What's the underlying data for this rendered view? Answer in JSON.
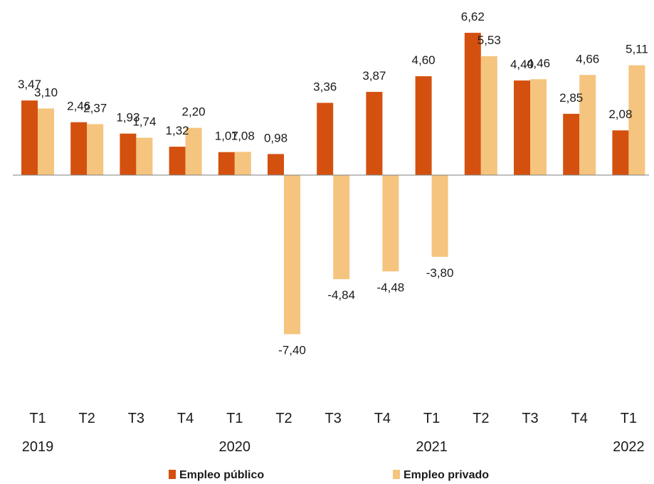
{
  "chart_data": {
    "type": "bar",
    "categories": [
      "T1",
      "T2",
      "T3",
      "T4",
      "T1",
      "T2",
      "T3",
      "T4",
      "T1",
      "T2",
      "T3",
      "T4",
      "T1"
    ],
    "years": [
      {
        "label": "2019",
        "index": 0
      },
      {
        "label": "2020",
        "index": 4
      },
      {
        "label": "2021",
        "index": 8
      },
      {
        "label": "2022",
        "index": 12
      }
    ],
    "series": [
      {
        "name": "Empleo público",
        "color": "#D4500F",
        "values": [
          3.47,
          2.46,
          1.93,
          1.32,
          1.07,
          0.98,
          3.36,
          3.87,
          4.6,
          6.62,
          4.4,
          2.85,
          2.08
        ],
        "labels": [
          "3,47",
          "2,46",
          "1,93",
          "1,32",
          "1,07",
          "0,98",
          "3,36",
          "3,87",
          "4,60",
          "6,62",
          "4,40",
          "2,85",
          "2,08"
        ]
      },
      {
        "name": "Empleo privado",
        "color": "#F5C47E",
        "values": [
          3.1,
          2.37,
          1.74,
          2.2,
          1.08,
          -7.4,
          -4.84,
          -4.48,
          -3.8,
          5.53,
          4.46,
          4.66,
          5.11
        ],
        "labels": [
          "3,10",
          "2,37",
          "1,74",
          "2,20",
          "1,08",
          "-7,40",
          "-4,84",
          "-4,48",
          "-3,80",
          "5,53",
          "4,46",
          "4,66",
          "5,11"
        ]
      }
    ],
    "ylim": [
      -8,
      7
    ],
    "title": "",
    "xlabel": "",
    "ylabel": "",
    "grid": false,
    "legend": "bottom"
  }
}
